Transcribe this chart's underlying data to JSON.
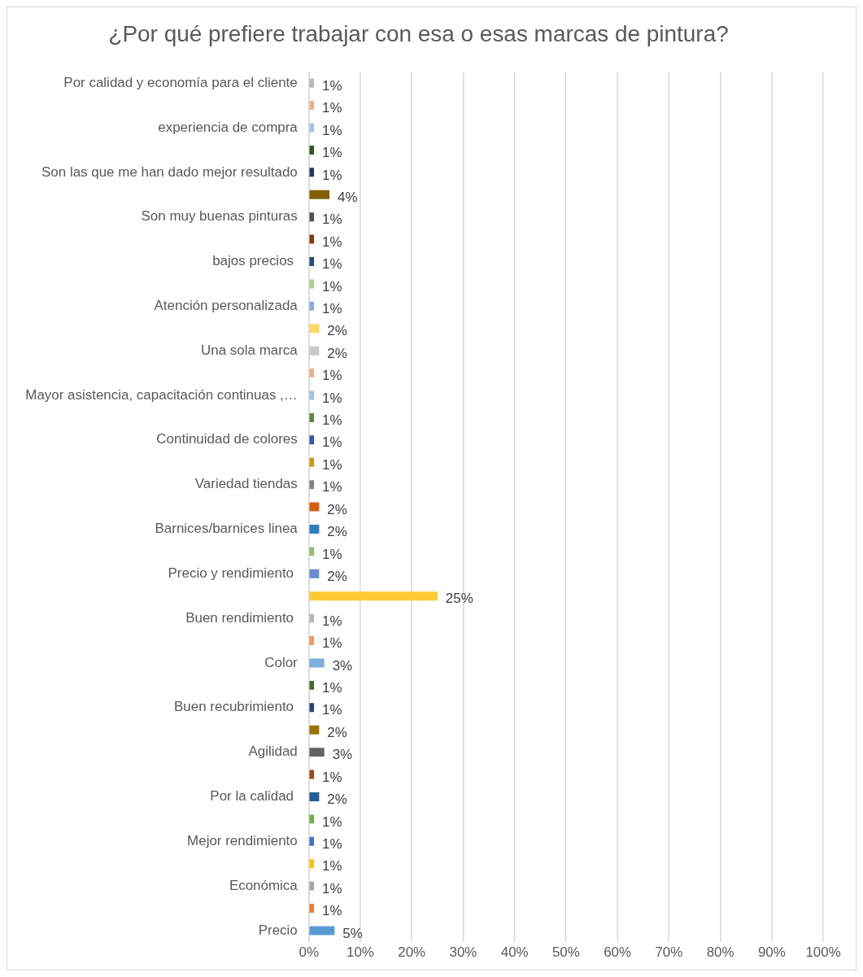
{
  "chart_data": {
    "type": "bar",
    "orientation": "horizontal",
    "title": "¿Por qué prefiere trabajar con esa o esas marcas de pintura?",
    "categories": [
      "Por calidad y economía para el cliente",
      null,
      "experiencia de compra",
      null,
      "Son las que me han dado mejor resultado",
      null,
      "Son muy buenas pinturas",
      null,
      "bajos precios ",
      null,
      "Atención personalizada",
      null,
      "Una sola marca",
      null,
      "Mayor asistencia, capacitación continuas ,…",
      null,
      "Continuidad de colores",
      null,
      "Variedad tiendas",
      null,
      "Barnices/barnices linea",
      null,
      "Precio y rendimiento ",
      null,
      "Buen rendimiento ",
      null,
      "Color",
      null,
      "Buen recubrimiento ",
      null,
      "Agilidad",
      null,
      "Por la calidad ",
      null,
      "Mejor rendimiento",
      null,
      "Económica",
      null,
      "Precio"
    ],
    "values": [
      1,
      1,
      1,
      1,
      1,
      4,
      1,
      1,
      1,
      1,
      1,
      2,
      2,
      1,
      1,
      1,
      1,
      1,
      1,
      2,
      2,
      1,
      2,
      25,
      1,
      1,
      3,
      1,
      1,
      2,
      3,
      1,
      2,
      1,
      1,
      1,
      1,
      1,
      5
    ],
    "value_labels": [
      "1%",
      "1%",
      "1%",
      "1%",
      "1%",
      "4%",
      "1%",
      "1%",
      "1%",
      "1%",
      "1%",
      "2%",
      "2%",
      "1%",
      "1%",
      "1%",
      "1%",
      "1%",
      "1%",
      "2%",
      "2%",
      "1%",
      "2%",
      "25%",
      "1%",
      "1%",
      "3%",
      "1%",
      "1%",
      "2%",
      "3%",
      "1%",
      "2%",
      "1%",
      "1%",
      "1%",
      "1%",
      "1%",
      "5%"
    ],
    "colors": [
      "#b7b7b7",
      "#f4b183",
      "#9dc3e6",
      "#375623",
      "#203864",
      "#7f6000",
      "#525252",
      "#843c0c",
      "#1f4e79",
      "#a9d18e",
      "#8faadc",
      "#ffd966",
      "#c9c9c9",
      "#f4b183",
      "#9dc3e6",
      "#5a8a39",
      "#335aa1",
      "#cc9a00",
      "#848484",
      "#d26012",
      "#327dc2",
      "#8cc168",
      "#698ed0",
      "#ffc933",
      "#b7b7b7",
      "#f1975a",
      "#7cafdd",
      "#43682b",
      "#264478",
      "#997300",
      "#636363",
      "#9e480e",
      "#255e91",
      "#70ad47",
      "#4472c4",
      "#ffc000",
      "#a5a5a5",
      "#ed7d31",
      "#5b9bd5"
    ],
    "xlim": [
      0,
      100
    ],
    "xticks": [
      {
        "value": 0,
        "label": "0%"
      },
      {
        "value": 10,
        "label": "10%"
      },
      {
        "value": 20,
        "label": "20%"
      },
      {
        "value": 30,
        "label": "30%"
      },
      {
        "value": 40,
        "label": "40%"
      },
      {
        "value": 50,
        "label": "50%"
      },
      {
        "value": 60,
        "label": "60%"
      },
      {
        "value": 70,
        "label": "70%"
      },
      {
        "value": 80,
        "label": "80%"
      },
      {
        "value": 90,
        "label": "90%"
      },
      {
        "value": 100,
        "label": "100%"
      }
    ],
    "grid": "x"
  }
}
